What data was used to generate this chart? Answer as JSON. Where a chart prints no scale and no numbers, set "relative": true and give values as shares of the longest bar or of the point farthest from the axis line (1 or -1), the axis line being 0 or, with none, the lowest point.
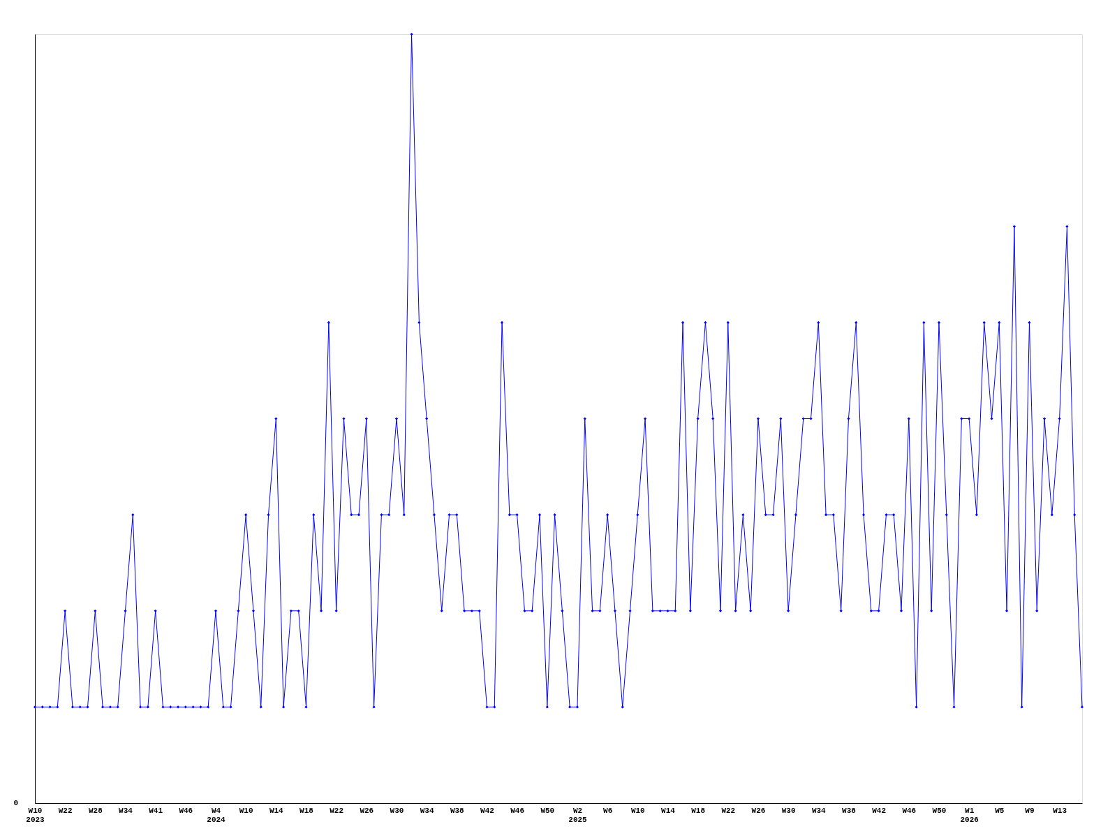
{
  "chart_data": {
    "type": "line",
    "relative": true,
    "annotations": [
      "0"
    ],
    "grid": false,
    "marker": "diamond",
    "line_style": "solid",
    "categories": [
      "W10\n2023",
      null,
      null,
      null,
      "W22",
      null,
      null,
      null,
      "W28",
      null,
      null,
      null,
      "W34",
      null,
      null,
      null,
      "W41",
      null,
      null,
      null,
      "W46",
      null,
      null,
      null,
      "W4\n2024",
      null,
      null,
      null,
      "W10",
      null,
      null,
      null,
      "W14",
      null,
      null,
      null,
      "W18",
      null,
      null,
      null,
      "W22",
      null,
      null,
      null,
      "W26",
      null,
      null,
      null,
      "W30",
      null,
      null,
      null,
      "W34",
      null,
      null,
      null,
      "W38",
      null,
      null,
      null,
      "W42",
      null,
      null,
      null,
      "W46",
      null,
      null,
      null,
      "W50",
      null,
      null,
      null,
      "W2\n2025",
      null,
      null,
      null,
      "W6",
      null,
      null,
      null,
      "W10",
      null,
      null,
      null,
      "W14",
      null,
      null,
      null,
      "W18",
      null,
      null,
      null,
      "W22",
      null,
      null,
      null,
      "W26",
      null,
      null,
      null,
      "W30",
      null,
      null,
      null,
      "W34",
      null,
      null,
      null,
      "W38",
      null,
      null,
      null,
      "W42",
      null,
      null,
      null,
      "W46",
      null,
      null,
      null,
      "W50",
      null,
      null,
      null,
      "W1\n2026",
      null,
      null,
      null,
      "W5",
      null,
      null,
      null,
      "W9",
      null,
      null,
      null,
      "W13",
      null,
      null,
      null
    ],
    "series": [
      {
        "color": "#0000ff",
        "values": [
          0.125,
          0.125,
          0.125,
          0.125,
          0.25,
          0.125,
          0.125,
          0.125,
          0.25,
          0.125,
          0.125,
          0.125,
          0.25,
          0.375,
          0.125,
          0.125,
          0.25,
          0.125,
          0.125,
          0.125,
          0.125,
          0.125,
          0.125,
          0.125,
          0.25,
          0.125,
          0.125,
          0.25,
          0.375,
          0.25,
          0.125,
          0.375,
          0.5,
          0.125,
          0.25,
          0.25,
          0.125,
          0.375,
          0.25,
          0.625,
          0.25,
          0.5,
          0.375,
          0.375,
          0.5,
          0.125,
          0.375,
          0.375,
          0.5,
          0.375,
          1,
          0.625,
          0.5,
          0.375,
          0.25,
          0.375,
          0.375,
          0.25,
          0.25,
          0.25,
          0.125,
          0.125,
          0.625,
          0.375,
          0.375,
          0.25,
          0.25,
          0.375,
          0.125,
          0.375,
          0.25,
          0.125,
          0.125,
          0.5,
          0.25,
          0.25,
          0.375,
          0.25,
          0.125,
          0.25,
          0.375,
          0.5,
          0.25,
          0.25,
          0.25,
          0.25,
          0.625,
          0.25,
          0.5,
          0.625,
          0.5,
          0.25,
          0.625,
          0.25,
          0.375,
          0.25,
          0.5,
          0.375,
          0.375,
          0.5,
          0.25,
          0.375,
          0.5,
          0.5,
          0.625,
          0.375,
          0.375,
          0.25,
          0.5,
          0.625,
          0.375,
          0.25,
          0.25,
          0.375,
          0.375,
          0.25,
          0.5,
          0.125,
          0.625,
          0.25,
          0.625,
          0.375,
          0.125,
          0.5,
          0.5,
          0.375,
          0.625,
          0.5,
          0.625,
          0.25,
          0.75,
          0.125,
          0.625,
          0.25,
          0.5,
          0.375,
          0.5,
          0.75,
          0.375,
          0.125
        ]
      }
    ]
  }
}
